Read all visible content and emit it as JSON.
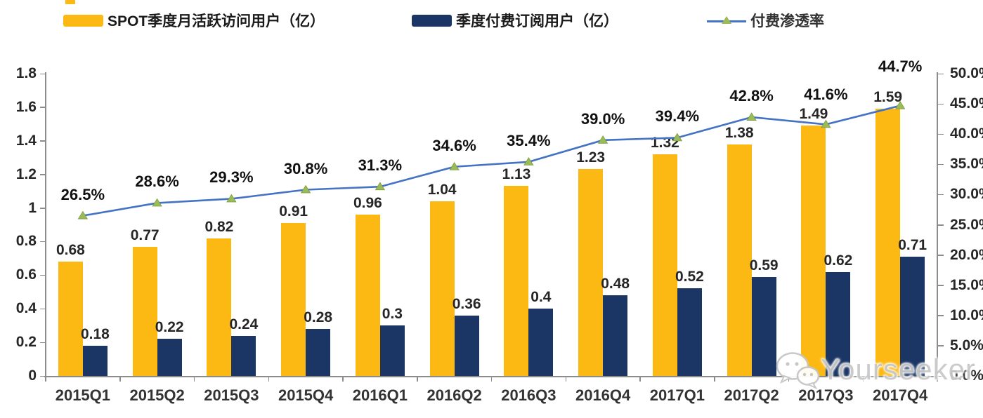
{
  "colors": {
    "mau_bar": "#FDB913",
    "subs_bar": "#1B3665",
    "penetration_line": "#4472C4",
    "penetration_marker": "#9BBB59",
    "axis": "#8c8c8c",
    "watermark_text": "#c9c9c9"
  },
  "legend": {
    "items": [
      {
        "label": "SPOT季度月活跃访问用户（亿）",
        "type": "bar",
        "color": "#FDB913"
      },
      {
        "label": "季度付费订阅用户（亿）",
        "type": "bar",
        "color": "#1B3665"
      },
      {
        "label": "付费渗透率",
        "type": "line",
        "color": "#4472C4",
        "marker_color": "#9BBB59"
      }
    ]
  },
  "chart_data": {
    "type": "bar",
    "subtype": "combo-bar-line",
    "title": "",
    "categories": [
      "2015Q1",
      "2015Q2",
      "2015Q3",
      "2015Q4",
      "2016Q1",
      "2016Q2",
      "2016Q3",
      "2016Q4",
      "2017Q1",
      "2017Q2",
      "2017Q3",
      "2017Q4"
    ],
    "series": [
      {
        "name": "SPOT季度月活跃访问用户（亿）",
        "type": "bar",
        "axis": "left",
        "color": "#FDB913",
        "values": [
          0.68,
          0.77,
          0.82,
          0.91,
          0.96,
          1.04,
          1.13,
          1.23,
          1.32,
          1.38,
          1.49,
          1.59
        ],
        "labels": [
          "0.68",
          "0.77",
          "0.82",
          "0.91",
          "0.96",
          "1.04",
          "1.13",
          "1.23",
          "1.32",
          "1.38",
          "1.49",
          "1.59"
        ]
      },
      {
        "name": "季度付费订阅用户（亿）",
        "type": "bar",
        "axis": "left",
        "color": "#1B3665",
        "values": [
          0.18,
          0.22,
          0.24,
          0.28,
          0.3,
          0.36,
          0.4,
          0.48,
          0.52,
          0.59,
          0.62,
          0.71
        ],
        "labels": [
          "0.18",
          "0.22",
          "0.24",
          "0.28",
          "0.3",
          "0.36",
          "0.4",
          "0.48",
          "0.52",
          "0.59",
          "0.62",
          "0.71"
        ]
      },
      {
        "name": "付费渗透率",
        "type": "line",
        "axis": "right",
        "color": "#4472C4",
        "marker": "triangle",
        "marker_color": "#9BBB59",
        "values": [
          26.5,
          28.6,
          29.3,
          30.8,
          31.3,
          34.6,
          35.4,
          39.0,
          39.4,
          42.8,
          41.6,
          44.7
        ],
        "labels": [
          "26.5%",
          "28.6%",
          "29.3%",
          "30.8%",
          "31.3%",
          "34.6%",
          "35.4%",
          "39.0%",
          "39.4%",
          "42.8%",
          "41.6%",
          "44.7%"
        ]
      }
    ],
    "left_axis": {
      "range": [
        0,
        1.8
      ],
      "ticks": [
        "1.8",
        "1.6",
        "1.4",
        "1.2",
        "1",
        "0.8",
        "0.6",
        "0.4",
        "0.2",
        "0"
      ]
    },
    "right_axis": {
      "range": [
        0,
        50
      ],
      "ticks": [
        "50.0%",
        "45.0%",
        "40.0%",
        "35.0%",
        "30.0%",
        "25.0%",
        "20.0%",
        "15.0%",
        "10.0%",
        "5.0%",
        "0.0%"
      ]
    },
    "layout_hints": {
      "legend_position": "top",
      "grid": false,
      "bars_paired_touching": true,
      "pct_label_dy": [
        30,
        30,
        30,
        30,
        30,
        30,
        30,
        30,
        30,
        30,
        42,
        56
      ]
    }
  },
  "watermark": {
    "text": "Yourseeker",
    "icon": "wechat-icon"
  }
}
